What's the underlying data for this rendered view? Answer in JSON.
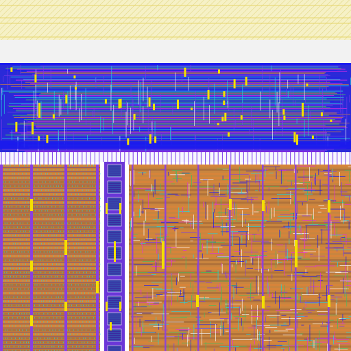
{
  "view": {
    "name": "ic-layout-viewer",
    "background": "#ffffff"
  },
  "colors": {
    "guard_band_fill": "#f6f1c6",
    "guard_band_stripe": "#d8cc68",
    "page_gap": "#f2f2f2",
    "metal1_blue": "#1a1aee",
    "metal2_purple": "#7a3be8",
    "metal3_magenta": "#e22ae6",
    "cyan_lines": "#22d6e0",
    "cell_orange": "#d6843a",
    "cell_brown": "#b0723a",
    "via_yellow": "#f4e000",
    "green_lines": "#3fbf62",
    "pin_white": "#fafafa",
    "column_violet": "#8b3fe0"
  },
  "regions": [
    {
      "name": "top-guard-band",
      "layer": "guard"
    },
    {
      "name": "routing-channel",
      "layer": "metal"
    },
    {
      "name": "left-standard-cell-array",
      "layer": "cells"
    },
    {
      "name": "center-io-column",
      "layer": "io"
    },
    {
      "name": "right-random-logic-block",
      "layer": "logic"
    }
  ]
}
